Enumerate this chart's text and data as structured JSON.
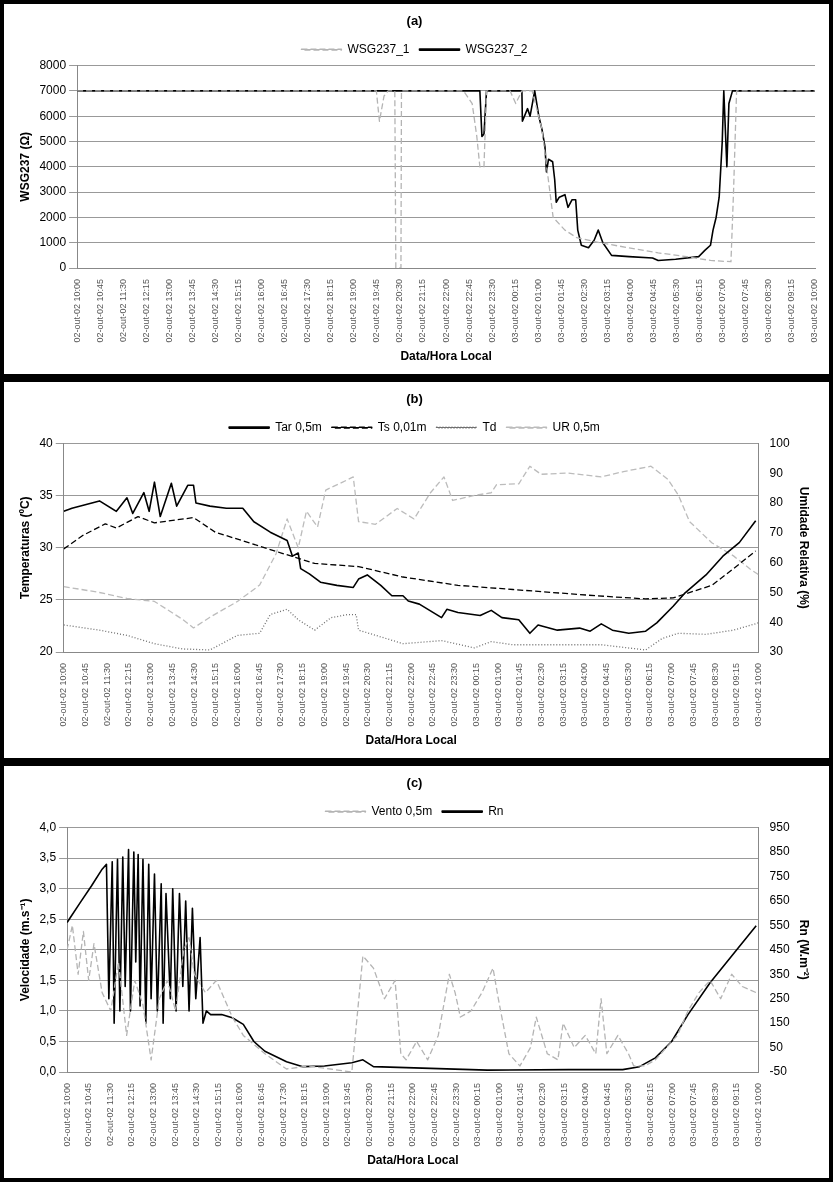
{
  "chart_data": [
    {
      "type": "line",
      "title": "(a)",
      "xlabel": "Data/Hora Local",
      "ylabel": "WSG237 (Ω)",
      "legend": "top",
      "grid": "y",
      "xlim": [
        "--10-02T10:00",
        "--10-03T10:00"
      ],
      "xticks": [
        {
          "value": "--10-02T10:00",
          "label": "02-out-02 10:00"
        },
        {
          "value": "--10-02T10:45",
          "label": "02-out-02 10:45"
        },
        {
          "value": "--10-02T11:30",
          "label": "02-out-02 11:30"
        },
        {
          "value": "--10-02T12:15",
          "label": "02-out-02 12:15"
        },
        {
          "value": "--10-02T13:00",
          "label": "02-out-02 13:00"
        },
        {
          "value": "--10-02T13:45",
          "label": "02-out-02 13:45"
        },
        {
          "value": "--10-02T14:30",
          "label": "02-out-02 14:30"
        },
        {
          "value": "--10-02T15:15",
          "label": "02-out-02 15:15"
        },
        {
          "value": "--10-02T16:00",
          "label": "02-out-02 16:00"
        },
        {
          "value": "--10-02T16:45",
          "label": "02-out-02 16:45"
        },
        {
          "value": "--10-02T17:30",
          "label": "02-out-02 17:30"
        },
        {
          "value": "--10-02T18:15",
          "label": "02-out-02 18:15"
        },
        {
          "value": "--10-02T19:00",
          "label": "02-out-02 19:00"
        },
        {
          "value": "--10-02T19:45",
          "label": "02-out-02 19:45"
        },
        {
          "value": "--10-02T20:30",
          "label": "02-out-02 20:30"
        },
        {
          "value": "--10-02T21:15",
          "label": "02-out-02 21:15"
        },
        {
          "value": "--10-02T22:00",
          "label": "02-out-02 22:00"
        },
        {
          "value": "--10-02T22:45",
          "label": "02-out-02 22:45"
        },
        {
          "value": "--10-02T23:30",
          "label": "02-out-02 23:30"
        },
        {
          "value": "--10-03T00:15",
          "label": "03-out-02 00:15"
        },
        {
          "value": "--10-03T01:00",
          "label": "03-out-02 01:00"
        },
        {
          "value": "--10-03T01:45",
          "label": "03-out-02 01:45"
        },
        {
          "value": "--10-03T02:30",
          "label": "03-out-02 02:30"
        },
        {
          "value": "--10-03T03:15",
          "label": "03-out-02 03:15"
        },
        {
          "value": "--10-03T04:00",
          "label": "03-out-02 04:00"
        },
        {
          "value": "--10-03T04:45",
          "label": "03-out-02 04:45"
        },
        {
          "value": "--10-03T05:30",
          "label": "03-out-02 05:30"
        },
        {
          "value": "--10-03T06:15",
          "label": "03-out-02 06:15"
        },
        {
          "value": "--10-03T07:00",
          "label": "03-out-02 07:00"
        },
        {
          "value": "--10-03T07:45",
          "label": "03-out-02 07:45"
        },
        {
          "value": "--10-03T08:30",
          "label": "03-out-02 08:30"
        },
        {
          "value": "--10-03T09:15",
          "label": "03-out-02 09:15"
        },
        {
          "value": "--10-03T10:00",
          "label": "03-out-02 10:00"
        }
      ],
      "ylim": [
        0,
        8000
      ],
      "yticks": [
        0,
        1000,
        2000,
        3000,
        4000,
        5000,
        6000,
        7000,
        8000
      ],
      "series": [
        {
          "name": "WSG237_1",
          "color": "#b4b4b4",
          "line_style": "dashed",
          "x": [
            "--10-02T10:00",
            "--10-02T19:44",
            "--10-02T19:50",
            "--10-02T19:59",
            "--10-02T20:07",
            "--10-02T20:20",
            "--10-02T20:22",
            "--10-02T20:32",
            "--10-02T20:33",
            "--10-02T22:34",
            "--10-02T22:51",
            "--10-02T23:00",
            "--10-02T23:06",
            "--10-02T23:14",
            "--10-02T23:19",
            "--10-03T00:05",
            "--10-03T00:16",
            "--10-03T00:28",
            "--10-03T00:48",
            "--10-03T01:07",
            "--10-03T01:29",
            "--10-03T01:52",
            "--10-03T02:15",
            "--10-03T03:00",
            "--10-03T03:57",
            "--10-03T04:54",
            "--10-03T05:50",
            "--10-03T06:36",
            "--10-03T07:16",
            "--10-03T07:21",
            "--10-03T07:27",
            "--10-03T10:00"
          ],
          "values": [
            7000,
            7000,
            5800,
            6800,
            7000,
            7000,
            0,
            0,
            7000,
            7000,
            6500,
            5200,
            4000,
            4000,
            7000,
            7000,
            6500,
            7000,
            7000,
            5500,
            2000,
            1500,
            1200,
            1000,
            800,
            600,
            450,
            300,
            250,
            3000,
            7000,
            7000
          ]
        },
        {
          "name": "WSG237_2",
          "color": "#000000",
          "line_style": "solid",
          "x": [
            "--10-02T10:00",
            "--10-02T23:06",
            "--10-02T23:10",
            "--10-02T23:14",
            "--10-02T23:19",
            "--10-03T00:28",
            "--10-03T00:29",
            "--10-03T00:39",
            "--10-03T00:44",
            "--10-03T00:53",
            "--10-03T01:01",
            "--10-03T01:07",
            "--10-03T01:13",
            "--10-03T01:16",
            "--10-03T01:20",
            "--10-03T01:28",
            "--10-03T01:32",
            "--10-03T01:35",
            "--10-03T01:41",
            "--10-03T01:52",
            "--10-03T01:58",
            "--10-03T02:06",
            "--10-03T02:13",
            "--10-03T02:17",
            "--10-03T02:24",
            "--10-03T02:38",
            "--10-03T02:49",
            "--10-03T02:57",
            "--10-03T03:06",
            "--10-03T03:23",
            "--10-03T03:57",
            "--10-03T04:43",
            "--10-03T04:54",
            "--10-03T05:28",
            "--10-03T06:13",
            "--10-03T06:25",
            "--10-03T06:36",
            "--10-03T06:41",
            "--10-03T06:47",
            "--10-03T06:53",
            "--10-03T06:59",
            "--10-03T07:02",
            "--10-03T07:08",
            "--10-03T07:12",
            "--10-03T07:19",
            "--10-03T10:00"
          ],
          "values": [
            7000,
            7000,
            5200,
            5300,
            7000,
            7000,
            5800,
            6300,
            6000,
            7000,
            6000,
            5500,
            4800,
            3800,
            4300,
            4200,
            3500,
            2600,
            2800,
            2900,
            2400,
            2700,
            2700,
            1500,
            900,
            800,
            1100,
            1500,
            1000,
            500,
            450,
            400,
            300,
            350,
            450,
            700,
            900,
            1500,
            2000,
            2800,
            5000,
            7000,
            4000,
            6500,
            7000,
            7000
          ]
        }
      ]
    },
    {
      "type": "line",
      "title": "(b)",
      "xlabel": "Data/Hora Local",
      "ylabel": "Temperaturas (ºC)",
      "y2label": "Umidade Relativa (%)",
      "legend": "top",
      "grid": "y",
      "xlim": [
        "--10-02T10:00",
        "--10-03T10:00"
      ],
      "xticks": [
        {
          "value": "--10-02T10:00",
          "label": "02-out-02 10:00"
        },
        {
          "value": "--10-02T10:45",
          "label": "02-out-02 10:45"
        },
        {
          "value": "--10-02T11:30",
          "label": "02-out-02 11:30"
        },
        {
          "value": "--10-02T12:15",
          "label": "02-out-02 12:15"
        },
        {
          "value": "--10-02T13:00",
          "label": "02-out-02 13:00"
        },
        {
          "value": "--10-02T13:45",
          "label": "02-out-02 13:45"
        },
        {
          "value": "--10-02T14:30",
          "label": "02-out-02 14:30"
        },
        {
          "value": "--10-02T15:15",
          "label": "02-out-02 15:15"
        },
        {
          "value": "--10-02T16:00",
          "label": "02-out-02 16:00"
        },
        {
          "value": "--10-02T16:45",
          "label": "02-out-02 16:45"
        },
        {
          "value": "--10-02T17:30",
          "label": "02-out-02 17:30"
        },
        {
          "value": "--10-02T18:15",
          "label": "02-out-02 18:15"
        },
        {
          "value": "--10-02T19:00",
          "label": "02-out-02 19:00"
        },
        {
          "value": "--10-02T19:45",
          "label": "02-out-02 19:45"
        },
        {
          "value": "--10-02T20:30",
          "label": "02-out-02 20:30"
        },
        {
          "value": "--10-02T21:15",
          "label": "02-out-02 21:15"
        },
        {
          "value": "--10-02T22:00",
          "label": "02-out-02 22:00"
        },
        {
          "value": "--10-02T22:45",
          "label": "02-out-02 22:45"
        },
        {
          "value": "--10-02T23:30",
          "label": "02-out-02 23:30"
        },
        {
          "value": "--10-03T00:15",
          "label": "03-out-02 00:15"
        },
        {
          "value": "--10-03T01:00",
          "label": "03-out-02 01:00"
        },
        {
          "value": "--10-03T01:45",
          "label": "03-out-02 01:45"
        },
        {
          "value": "--10-03T02:30",
          "label": "03-out-02 02:30"
        },
        {
          "value": "--10-03T03:15",
          "label": "03-out-02 03:15"
        },
        {
          "value": "--10-03T04:00",
          "label": "03-out-02 04:00"
        },
        {
          "value": "--10-03T04:45",
          "label": "03-out-02 04:45"
        },
        {
          "value": "--10-03T05:30",
          "label": "03-out-02 05:30"
        },
        {
          "value": "--10-03T06:15",
          "label": "03-out-02 06:15"
        },
        {
          "value": "--10-03T07:00",
          "label": "03-out-02 07:00"
        },
        {
          "value": "--10-03T07:45",
          "label": "03-out-02 07:45"
        },
        {
          "value": "--10-03T08:30",
          "label": "03-out-02 08:30"
        },
        {
          "value": "--10-03T09:15",
          "label": "03-out-02 09:15"
        },
        {
          "value": "--10-03T10:00",
          "label": "03-out-02 10:00"
        }
      ],
      "ylim": [
        20,
        40
      ],
      "yticks": [
        20,
        25,
        30,
        35,
        40
      ],
      "y2lim": [
        30,
        100
      ],
      "y2ticks": [
        30,
        40,
        50,
        60,
        70,
        80,
        90,
        100
      ],
      "series": [
        {
          "name": "Tar 0,5m",
          "color": "#000000",
          "line_style": "solid",
          "x": [
            "--10-02T10:00",
            "--10-02T10:17",
            "--10-02T11:14",
            "--10-02T11:49",
            "--10-02T12:11",
            "--10-02T12:23",
            "--10-02T12:46",
            "--10-02T12:57",
            "--10-02T13:08",
            "--10-02T13:20",
            "--10-02T13:43",
            "--10-02T13:54",
            "--10-02T14:17",
            "--10-02T14:29",
            "--10-02T14:34",
            "--10-02T15:03",
            "--10-02T15:37",
            "--10-02T16:11",
            "--10-02T16:34",
            "--10-02T17:08",
            "--10-02T17:43",
            "--10-02T17:54",
            "--10-02T18:06",
            "--10-02T18:11",
            "--10-02T18:29",
            "--10-02T18:52",
            "--10-02T19:26",
            "--10-02T20:00",
            "--10-02T20:11",
            "--10-02T20:29",
            "--10-02T20:57",
            "--10-02T21:20",
            "--10-02T21:43",
            "--10-02T21:54",
            "--10-02T22:17",
            "--10-02T23:03",
            "--10-02T23:14",
            "--10-02T23:37",
            "--10-03T00:23",
            "--10-03T00:46",
            "--10-03T01:08",
            "--10-03T01:43",
            "--10-03T02:06",
            "--10-03T02:23",
            "--10-03T03:03",
            "--10-03T03:49",
            "--10-03T04:11",
            "--10-03T04:34",
            "--10-03T04:57",
            "--10-03T05:31",
            "--10-03T06:06",
            "--10-03T06:29",
            "--10-03T07:03",
            "--10-03T07:26",
            "--10-03T08:11",
            "--10-03T08:46",
            "--10-03T09:20",
            "--10-03T09:54"
          ],
          "values": [
            33.5,
            33.8,
            34.5,
            33.5,
            34.8,
            33.3,
            35.3,
            33.5,
            36.3,
            33,
            36.2,
            34,
            36,
            36,
            34.3,
            34,
            33.8,
            33.8,
            32.5,
            31.5,
            30.7,
            29.2,
            29.5,
            28,
            27.5,
            26.7,
            26.4,
            26.2,
            27,
            27.4,
            26.4,
            25.4,
            25.4,
            24.9,
            24.6,
            23.3,
            24.1,
            23.8,
            23.5,
            24,
            23.3,
            23.1,
            21.8,
            22.6,
            22.1,
            22.3,
            22,
            22.7,
            22.1,
            21.8,
            22,
            22.8,
            24.4,
            25.6,
            27.4,
            29.2,
            30.5,
            32.6
          ]
        },
        {
          "name": "Ts 0,01m",
          "color": "#000000",
          "line_style": "dashed",
          "x": [
            "--10-02T10:00",
            "--10-02T10:40",
            "--10-02T11:26",
            "--10-02T11:49",
            "--10-02T12:34",
            "--10-02T13:08",
            "--10-02T14:29",
            "--10-02T15:14",
            "--10-02T16:23",
            "--10-02T17:31",
            "--10-02T18:40",
            "--10-02T20:11",
            "--10-02T21:43",
            "--10-02T23:37",
            "--10-03T01:31",
            "--10-03T04:23",
            "--10-03T06:06",
            "--10-03T07:03",
            "--10-03T08:23",
            "--10-03T09:08",
            "--10-03T09:54"
          ],
          "values": [
            29.9,
            31.2,
            32.3,
            31.9,
            33,
            32.4,
            32.9,
            31.5,
            30.5,
            29.5,
            28.5,
            28.2,
            27.2,
            26.4,
            26,
            25.4,
            25.1,
            25.2,
            26.4,
            28,
            29.7
          ]
        },
        {
          "name": "Td",
          "color": "#707070",
          "line_style": "dotted",
          "x": [
            "--10-02T10:00",
            "--10-02T11:14",
            "--10-02T12:11",
            "--10-02T13:08",
            "--10-02T14:06",
            "--10-02T15:03",
            "--10-02T16:00",
            "--10-02T16:46",
            "--10-02T17:08",
            "--10-02T17:43",
            "--10-02T18:06",
            "--10-02T18:40",
            "--10-02T19:14",
            "--10-02T19:49",
            "--10-02T20:06",
            "--10-02T20:11",
            "--10-02T21:08",
            "--10-02T21:43",
            "--10-02T23:03",
            "--10-03T00:11",
            "--10-03T00:46",
            "--10-03T01:31",
            "--10-03T03:26",
            "--10-03T04:34",
            "--10-03T06:06",
            "--10-03T06:40",
            "--10-03T07:14",
            "--10-03T08:11",
            "--10-03T09:08",
            "--10-03T10:00"
          ],
          "values": [
            22.6,
            22.1,
            21.6,
            20.8,
            20.3,
            20.2,
            21.6,
            21.8,
            23.6,
            24.1,
            23.1,
            22.1,
            23.3,
            23.6,
            23.6,
            22.1,
            21.3,
            20.8,
            21.1,
            20.4,
            21,
            20.7,
            20.7,
            20.7,
            20.2,
            21.3,
            21.8,
            21.7,
            22.1,
            22.8
          ]
        },
        {
          "name": "UR 0,5m",
          "color": "#bcbcbc",
          "line_style": "dashed",
          "axis": "y2",
          "x": [
            "--10-02T10:00",
            "--10-02T11:14",
            "--10-02T12:11",
            "--10-02T13:08",
            "--10-02T14:06",
            "--10-02T14:29",
            "--10-02T15:03",
            "--10-02T16:00",
            "--10-02T16:23",
            "--10-02T16:46",
            "--10-02T17:20",
            "--10-02T17:43",
            "--10-02T18:06",
            "--10-02T18:23",
            "--10-02T18:46",
            "--10-02T19:03",
            "--10-02T19:37",
            "--10-02T20:00",
            "--10-02T20:11",
            "--10-02T20:46",
            "--10-02T21:31",
            "--10-02T22:06",
            "--10-02T22:40",
            "--10-02T23:08",
            "--10-02T23:26",
            "--10-03T00:11",
            "--10-03T00:46",
            "--10-03T00:57",
            "--10-03T01:43",
            "--10-03T02:06",
            "--10-03T02:29",
            "--10-03T03:26",
            "--10-03T04:34",
            "--10-03T05:20",
            "--10-03T06:17",
            "--10-03T06:52",
            "--10-03T07:14",
            "--10-03T07:37",
            "--10-03T08:23",
            "--10-03T09:08",
            "--10-03T09:43",
            "--10-03T10:00"
          ],
          "values": [
            52,
            50,
            48,
            47,
            41,
            38.1,
            41.7,
            47,
            49.7,
            52.5,
            63,
            74.7,
            65,
            77.3,
            72,
            84.4,
            87,
            88.8,
            73.8,
            72.9,
            78.2,
            74.7,
            83.5,
            88.8,
            80.9,
            82.6,
            83.5,
            86.2,
            86.5,
            92.4,
            89.7,
            90.1,
            88.8,
            90.6,
            92.4,
            88,
            82.6,
            73.8,
            66.7,
            62.3,
            57.8,
            56
          ]
        }
      ]
    },
    {
      "type": "line",
      "title": "(c)",
      "xlabel": "Data/Hora Local",
      "ylabel": "Velocidade (m.s⁻¹)",
      "y2label": "Rn (W.m⁻²)",
      "legend": "top",
      "grid": "y",
      "xlim": [
        "--10-02T10:00",
        "--10-03T10:00"
      ],
      "xticks": [
        {
          "value": "--10-02T10:00",
          "label": "02-out-02 10:00"
        },
        {
          "value": "--10-02T10:45",
          "label": "02-out-02 10:45"
        },
        {
          "value": "--10-02T11:30",
          "label": "02-out-02 11:30"
        },
        {
          "value": "--10-02T12:15",
          "label": "02-out-02 12:15"
        },
        {
          "value": "--10-02T13:00",
          "label": "02-out-02 13:00"
        },
        {
          "value": "--10-02T13:45",
          "label": "02-out-02 13:45"
        },
        {
          "value": "--10-02T14:30",
          "label": "02-out-02 14:30"
        },
        {
          "value": "--10-02T15:15",
          "label": "02-out-02 15:15"
        },
        {
          "value": "--10-02T16:00",
          "label": "02-out-02 16:00"
        },
        {
          "value": "--10-02T16:45",
          "label": "02-out-02 16:45"
        },
        {
          "value": "--10-02T17:30",
          "label": "02-out-02 17:30"
        },
        {
          "value": "--10-02T18:15",
          "label": "02-out-02 18:15"
        },
        {
          "value": "--10-02T19:00",
          "label": "02-out-02 19:00"
        },
        {
          "value": "--10-02T19:45",
          "label": "02-out-02 19:45"
        },
        {
          "value": "--10-02T20:30",
          "label": "02-out-02 20:30"
        },
        {
          "value": "--10-02T21:15",
          "label": "02-out-02 21:15"
        },
        {
          "value": "--10-02T22:00",
          "label": "02-out-02 22:00"
        },
        {
          "value": "--10-02T22:45",
          "label": "02-out-02 22:45"
        },
        {
          "value": "--10-02T23:30",
          "label": "02-out-02 23:30"
        },
        {
          "value": "--10-03T00:15",
          "label": "03-out-02 00:15"
        },
        {
          "value": "--10-03T01:00",
          "label": "03-out-02 01:00"
        },
        {
          "value": "--10-03T01:45",
          "label": "03-out-02 01:45"
        },
        {
          "value": "--10-03T02:30",
          "label": "03-out-02 02:30"
        },
        {
          "value": "--10-03T03:15",
          "label": "03-out-02 03:15"
        },
        {
          "value": "--10-03T04:00",
          "label": "03-out-02 04:00"
        },
        {
          "value": "--10-03T04:45",
          "label": "03-out-02 04:45"
        },
        {
          "value": "--10-03T05:30",
          "label": "03-out-02 05:30"
        },
        {
          "value": "--10-03T06:15",
          "label": "03-out-02 06:15"
        },
        {
          "value": "--10-03T07:00",
          "label": "03-out-02 07:00"
        },
        {
          "value": "--10-03T07:45",
          "label": "03-out-02 07:45"
        },
        {
          "value": "--10-03T08:30",
          "label": "03-out-02 08:30"
        },
        {
          "value": "--10-03T09:15",
          "label": "03-out-02 09:15"
        },
        {
          "value": "--10-03T10:00",
          "label": "03-out-02 10:00"
        }
      ],
      "ylim": [
        0,
        4
      ],
      "yticks": [
        {
          "value": 0,
          "label": "0,0"
        },
        {
          "value": 0.5,
          "label": "0,5"
        },
        {
          "value": 1,
          "label": "1,0"
        },
        {
          "value": 1.5,
          "label": "1,5"
        },
        {
          "value": 2,
          "label": "2,0"
        },
        {
          "value": 2.5,
          "label": "2,5"
        },
        {
          "value": 3,
          "label": "3,0"
        },
        {
          "value": 3.5,
          "label": "3,5"
        },
        {
          "value": 4,
          "label": "4,0"
        }
      ],
      "y2lim": [
        -50,
        950
      ],
      "y2ticks": [
        -50,
        50,
        150,
        250,
        350,
        450,
        550,
        650,
        750,
        850,
        950
      ],
      "series": [
        {
          "name": "Vento 0,5m",
          "color": "#b4b4b4",
          "line_style": "dashed",
          "x": [
            "--10-02T10:00",
            "--10-02T10:11",
            "--10-02T10:23",
            "--10-02T10:34",
            "--10-02T10:45",
            "--10-02T10:56",
            "--10-02T11:13",
            "--10-02T11:31",
            "--10-02T11:47",
            "--10-02T12:04",
            "--10-02T12:21",
            "--10-02T12:38",
            "--10-02T12:55",
            "--10-02T13:12",
            "--10-02T13:29",
            "--10-02T13:46",
            "--10-02T14:03",
            "--10-02T14:14",
            "--10-02T14:25",
            "--10-02T14:48",
            "--10-02T15:11",
            "--10-02T15:33",
            "--10-02T15:44",
            "--10-02T16:07",
            "--10-02T16:52",
            "--10-02T17:37",
            "--10-02T18:23",
            "--10-02T19:08",
            "--10-02T19:53",
            "--10-02T20:16",
            "--10-02T20:38",
            "--10-02T21:01",
            "--10-02T21:23",
            "--10-02T21:35",
            "--10-02T21:46",
            "--10-02T22:08",
            "--10-02T22:31",
            "--10-02T22:53",
            "--10-02T23:16",
            "--10-02T23:28",
            "--10-02T23:39",
            "--10-03T00:01",
            "--10-03T00:24",
            "--10-03T00:47",
            "--10-03T00:58",
            "--10-03T01:20",
            "--10-03T01:43",
            "--10-03T02:05",
            "--10-03T02:17",
            "--10-03T02:40",
            "--10-03T03:02",
            "--10-03T03:13",
            "--10-03T03:36",
            "--10-03T03:59",
            "--10-03T04:21",
            "--10-03T04:32",
            "--10-03T04:44",
            "--10-03T05:07",
            "--10-03T05:29",
            "--10-03T05:40",
            "--10-03T06:03",
            "--10-03T06:25",
            "--10-03T06:48",
            "--10-03T07:11",
            "--10-03T07:33",
            "--10-03T07:56",
            "--10-03T08:19",
            "--10-03T08:41",
            "--10-03T09:04",
            "--10-03T09:26",
            "--10-03T09:55"
          ],
          "values": [
            2.0,
            2.4,
            1.6,
            2.3,
            1.5,
            2.1,
            1.3,
            1.0,
            1.8,
            0.6,
            1.5,
            1.1,
            0.2,
            1.2,
            1.5,
            1.0,
            2.0,
            2.2,
            1.6,
            1.3,
            1.5,
            1.1,
            0.9,
            0.6,
            0.3,
            0.05,
            0.1,
            0.05,
            0.0,
            1.9,
            1.7,
            1.2,
            1.5,
            0.3,
            0.2,
            0.5,
            0.2,
            0.6,
            1.6,
            1.3,
            0.9,
            1.0,
            1.3,
            1.7,
            1.2,
            0.3,
            0.1,
            0.4,
            0.9,
            0.3,
            0.2,
            0.8,
            0.4,
            0.6,
            0.3,
            1.2,
            0.3,
            0.6,
            0.3,
            0.1,
            0.1,
            0.2,
            0.4,
            0.6,
            1.0,
            1.3,
            1.5,
            1.2,
            1.6,
            1.4,
            1.3
          ]
        },
        {
          "name": "Rn",
          "color": "#000000",
          "line_style": "solid",
          "axis": "y2",
          "x": [
            "--10-02T10:00",
            "--10-02T10:28",
            "--10-02T10:51",
            "--10-02T11:13",
            "--10-02T11:22",
            "--10-02T11:27",
            "--10-02T11:34",
            "--10-02T11:38",
            "--10-02T11:45",
            "--10-02T11:50",
            "--10-02T11:56",
            "--10-02T12:01",
            "--10-02T12:08",
            "--10-02T12:12",
            "--10-02T12:19",
            "--10-02T12:23",
            "--10-02T12:28",
            "--10-02T12:32",
            "--10-02T12:38",
            "--10-02T12:44",
            "--10-02T12:50",
            "--10-02T12:55",
            "--10-02T13:02",
            "--10-02T13:08",
            "--10-02T13:16",
            "--10-02T13:20",
            "--10-02T13:26",
            "--10-02T13:35",
            "--10-02T13:40",
            "--10-02T13:47",
            "--10-02T13:54",
            "--10-02T14:01",
            "--10-02T14:07",
            "--10-02T14:14",
            "--10-02T14:21",
            "--10-02T14:28",
            "--10-02T14:37",
            "--10-02T14:43",
            "--10-02T14:50",
            "--10-02T14:59",
            "--10-02T15:22",
            "--10-02T15:44",
            "--10-02T16:07",
            "--10-02T16:29",
            "--10-02T16:52",
            "--10-02T17:37",
            "--10-02T18:11",
            "--10-02T18:56",
            "--10-02T19:53",
            "--10-02T20:16",
            "--10-02T20:38",
            "--10-02T21:46",
            "--10-03T00:35",
            "--10-03T03:25",
            "--10-03T05:17",
            "--10-03T05:52",
            "--10-03T06:25",
            "--10-03T06:59",
            "--10-03T07:33",
            "--10-03T08:19",
            "--10-03T09:04",
            "--10-03T09:55"
          ],
          "values": [
            562,
            645,
            712,
            780,
            800,
            250,
            810,
            150,
            820,
            200,
            830,
            300,
            860,
            200,
            850,
            400,
            840,
            220,
            820,
            150,
            800,
            250,
            760,
            200,
            720,
            150,
            680,
            250,
            700,
            200,
            680,
            300,
            650,
            200,
            620,
            250,
            500,
            150,
            200,
            185,
            185,
            172,
            145,
            75,
            35,
            -8,
            -28,
            -25,
            -12,
            0,
            -28,
            -32,
            -42,
            -40,
            -40,
            -28,
            8,
            75,
            185,
            315,
            425,
            548
          ]
        }
      ]
    }
  ]
}
